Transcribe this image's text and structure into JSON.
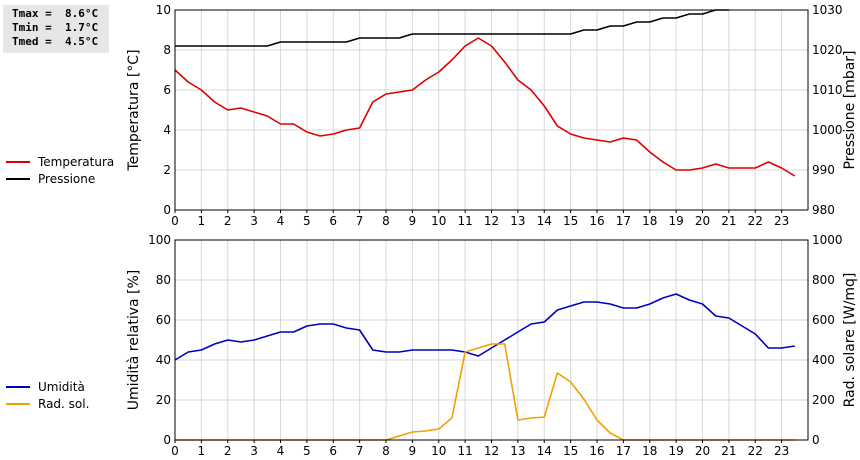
{
  "stats": {
    "tmax": "Tmax =  8.6°C",
    "tmin": "Tmin =  1.7°C",
    "tmed": "Tmed =  4.5°C"
  },
  "chart_data": [
    {
      "type": "line",
      "xlim": [
        0,
        24
      ],
      "xticks": [
        "0",
        "1",
        "2",
        "3",
        "4",
        "5",
        "6",
        "7",
        "8",
        "9",
        "10",
        "11",
        "12",
        "13",
        "14",
        "15",
        "16",
        "17",
        "18",
        "19",
        "20",
        "21",
        "22",
        "23"
      ],
      "ylabel": "Temperatura [°C]",
      "ylim": [
        0,
        10
      ],
      "yticks": [
        "0",
        "2",
        "4",
        "6",
        "8",
        "10"
      ],
      "y2label": "Pressione [mbar]",
      "y2lim": [
        980,
        1030
      ],
      "y2ticks": [
        "980",
        "990",
        "1000",
        "1010",
        "1020",
        "1030"
      ],
      "grid": true,
      "legend_position": "left",
      "series": [
        {
          "name": "Temperatura",
          "color": "#dd0000",
          "axis": "left",
          "x": [
            0,
            0.5,
            1,
            1.5,
            2,
            2.5,
            3,
            3.5,
            4,
            4.5,
            5,
            5.5,
            6,
            6.5,
            7,
            7.5,
            8,
            8.5,
            9,
            9.5,
            10,
            10.5,
            11,
            11.5,
            12,
            12.5,
            13,
            13.5,
            14,
            14.5,
            15,
            15.5,
            16,
            16.5,
            17,
            17.5,
            18,
            18.5,
            19,
            19.5,
            20,
            20.5,
            21,
            21.5,
            22,
            22.5,
            23,
            23.5
          ],
          "y": [
            7.0,
            6.4,
            6.0,
            5.4,
            5.0,
            5.1,
            4.9,
            4.7,
            4.3,
            4.3,
            3.9,
            3.7,
            3.8,
            4.0,
            4.1,
            5.4,
            5.8,
            5.9,
            6.0,
            6.5,
            6.9,
            7.5,
            8.2,
            8.6,
            8.2,
            7.4,
            6.5,
            6.0,
            5.2,
            4.2,
            3.8,
            3.6,
            3.5,
            3.4,
            3.6,
            3.5,
            2.9,
            2.4,
            2.0,
            2.0,
            2.1,
            2.3,
            2.1,
            2.1,
            2.1,
            2.4,
            2.1,
            1.7
          ]
        },
        {
          "name": "Pressione",
          "color": "#000000",
          "axis": "right",
          "x": [
            0,
            0.5,
            1,
            1.5,
            2,
            2.5,
            3,
            3.5,
            4,
            4.5,
            5,
            5.5,
            6,
            6.5,
            7,
            7.5,
            8,
            8.5,
            9,
            9.5,
            10,
            10.5,
            11,
            11.5,
            12,
            12.5,
            13,
            13.5,
            14,
            14.5,
            15,
            15.5,
            16,
            16.5,
            17,
            17.5,
            18,
            18.5,
            19,
            19.5,
            20,
            20.5,
            21
          ],
          "y": [
            1021,
            1021,
            1021,
            1021,
            1021,
            1021,
            1021,
            1021,
            1022,
            1022,
            1022,
            1022,
            1022,
            1022,
            1023,
            1023,
            1023,
            1023,
            1024,
            1024,
            1024,
            1024,
            1024,
            1024,
            1024,
            1024,
            1024,
            1024,
            1024,
            1024,
            1024,
            1025,
            1025,
            1026,
            1026,
            1027,
            1027,
            1028,
            1028,
            1029,
            1029,
            1030,
            1030.5
          ]
        }
      ]
    },
    {
      "type": "line",
      "xlim": [
        0,
        24
      ],
      "xticks": [
        "0",
        "1",
        "2",
        "3",
        "4",
        "5",
        "6",
        "7",
        "8",
        "9",
        "10",
        "11",
        "12",
        "13",
        "14",
        "15",
        "16",
        "17",
        "18",
        "19",
        "20",
        "21",
        "22",
        "23"
      ],
      "ylabel": "Umidità relativa [%]",
      "ylim": [
        0,
        100
      ],
      "yticks": [
        "0",
        "20",
        "40",
        "60",
        "80",
        "100"
      ],
      "y2label": "Rad. solare [W/mq]",
      "y2lim": [
        0,
        1000
      ],
      "y2ticks": [
        "0",
        "200",
        "400",
        "600",
        "800",
        "1000"
      ],
      "grid": true,
      "legend_position": "left",
      "series": [
        {
          "name": "Umidità",
          "color": "#0000bb",
          "axis": "left",
          "x": [
            0,
            0.5,
            1,
            1.5,
            2,
            2.5,
            3,
            3.5,
            4,
            4.5,
            5,
            5.5,
            6,
            6.5,
            7,
            7.5,
            8,
            8.5,
            9,
            9.5,
            10,
            10.5,
            11,
            11.5,
            12,
            12.5,
            13,
            13.5,
            14,
            14.5,
            15,
            15.5,
            16,
            16.5,
            17,
            17.5,
            18,
            18.5,
            19,
            19.5,
            20,
            20.5,
            21,
            21.5,
            22,
            22.5,
            23,
            23.5
          ],
          "y": [
            40,
            44,
            45,
            48,
            50,
            49,
            50,
            52,
            54,
            54,
            57,
            58,
            58,
            56,
            55,
            45,
            44,
            44,
            45,
            45,
            45,
            45,
            44,
            42,
            46,
            50,
            54,
            58,
            59,
            65,
            67,
            69,
            69,
            68,
            66,
            66,
            68,
            71,
            73,
            70,
            68,
            62,
            61,
            57,
            53,
            46,
            46,
            47
          ]
        },
        {
          "name": "Rad. sol.",
          "color": "#f0a000",
          "axis": "right",
          "x": [
            0,
            0.5,
            1,
            1.5,
            2,
            2.5,
            3,
            3.5,
            4,
            4.5,
            5,
            5.5,
            6,
            6.5,
            7,
            7.5,
            8,
            8.5,
            9,
            9.5,
            10,
            10.5,
            11,
            11.5,
            12,
            12.5,
            13,
            13.5,
            14,
            14.5,
            15,
            15.5,
            16,
            16.5,
            17,
            17.5,
            18,
            18.5,
            19,
            19.5,
            20,
            20.5,
            21,
            21.5,
            22,
            22.5,
            23,
            23.5
          ],
          "y": [
            0,
            0,
            0,
            0,
            0,
            0,
            0,
            0,
            0,
            0,
            0,
            0,
            0,
            0,
            0,
            0,
            0,
            20,
            40,
            45,
            55,
            110,
            440,
            460,
            480,
            480,
            100,
            110,
            115,
            335,
            290,
            205,
            100,
            35,
            0,
            0,
            0,
            0,
            0,
            0,
            0,
            0,
            0,
            0,
            0,
            0,
            0,
            0
          ]
        }
      ]
    }
  ]
}
